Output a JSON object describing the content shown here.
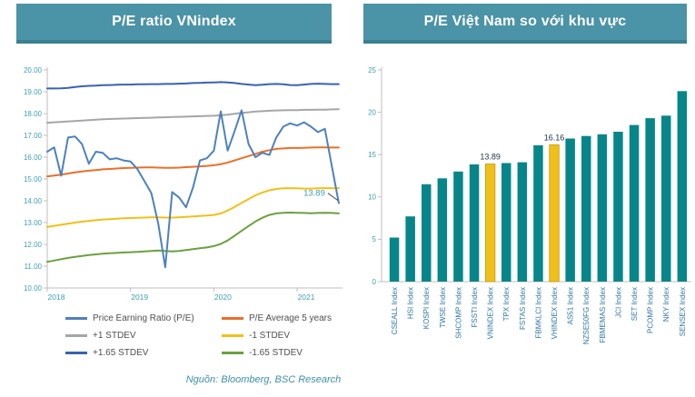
{
  "ui": {
    "left_header": "P/E ratio VNindex",
    "right_header": "P/E Việt Nam so với khu vực",
    "source": "Nguồn: Bloomberg, BSC Research"
  },
  "colors": {
    "banner_bg": "#4B93A6",
    "banner_border": "#3A7F92",
    "axis_line": "#BFBFBF",
    "tick_text": "#3E9FB2",
    "bar_teal": "#078689",
    "bar_gold": "#EFC01A",
    "bar_gold_stroke": "#C79B08",
    "bar_label_navy": "#1F3147",
    "bar_xlabel_blue": "#2E75A8",
    "annotation_leader": "#404040"
  },
  "chart_data": [
    {
      "type": "line",
      "title": "P/E ratio VNindex",
      "x_unit": "month",
      "x_start": "2018-01",
      "x_tick_labels": [
        "2018",
        "2019",
        "2020",
        "2021"
      ],
      "x_tick_positions": [
        0,
        12,
        24,
        36
      ],
      "ylim": [
        10,
        20
      ],
      "y_tick_step": 1,
      "y_tick_format": "2dp",
      "grid": false,
      "legend_position": "bottom",
      "annotation": {
        "text": "13.89",
        "series": "Price Earning Ratio (P/E)",
        "position": "last-point"
      },
      "series": [
        {
          "name": "Price Earning Ratio (P/E)",
          "color": "#4E81BD",
          "values": [
            16.25,
            16.45,
            15.15,
            16.9,
            16.95,
            16.6,
            15.7,
            16.25,
            16.2,
            15.9,
            15.95,
            15.85,
            15.8,
            15.45,
            14.9,
            14.35,
            12.95,
            10.95,
            14.4,
            14.15,
            13.7,
            14.6,
            15.85,
            15.95,
            16.3,
            18.1,
            16.3,
            17.2,
            18.15,
            16.6,
            16.0,
            16.2,
            16.1,
            16.9,
            17.4,
            17.55,
            17.45,
            17.6,
            17.4,
            17.15,
            17.3,
            15.6,
            13.89
          ]
        },
        {
          "name": "P/E Average 5 years",
          "color": "#E8702A",
          "values": [
            15.12,
            15.16,
            15.2,
            15.25,
            15.3,
            15.34,
            15.38,
            15.41,
            15.44,
            15.46,
            15.48,
            15.5,
            15.51,
            15.52,
            15.53,
            15.53,
            15.52,
            15.51,
            15.51,
            15.52,
            15.54,
            15.56,
            15.58,
            15.6,
            15.63,
            15.68,
            15.75,
            15.85,
            15.95,
            16.05,
            16.15,
            16.25,
            16.32,
            16.38,
            16.4,
            16.42,
            16.42,
            16.43,
            16.44,
            16.45,
            16.45,
            16.44,
            16.44
          ]
        },
        {
          "name": "+1 STDEV",
          "color": "#A6A6A6",
          "values": [
            17.58,
            17.6,
            17.62,
            17.64,
            17.66,
            17.68,
            17.7,
            17.72,
            17.74,
            17.75,
            17.76,
            17.77,
            17.78,
            17.79,
            17.8,
            17.81,
            17.82,
            17.83,
            17.84,
            17.85,
            17.86,
            17.87,
            17.88,
            17.89,
            17.9,
            17.92,
            17.95,
            17.99,
            18.03,
            18.06,
            18.09,
            18.11,
            18.13,
            18.14,
            18.15,
            18.16,
            18.16,
            18.17,
            18.17,
            18.18,
            18.18,
            18.19,
            18.2
          ]
        },
        {
          "name": "-1 STDEV",
          "color": "#F0C01A",
          "values": [
            12.8,
            12.85,
            12.9,
            12.95,
            13.0,
            13.04,
            13.08,
            13.11,
            13.14,
            13.16,
            13.18,
            13.2,
            13.21,
            13.22,
            13.23,
            13.24,
            13.24,
            13.23,
            13.23,
            13.24,
            13.26,
            13.28,
            13.3,
            13.32,
            13.35,
            13.42,
            13.55,
            13.72,
            13.9,
            14.08,
            14.25,
            14.38,
            14.48,
            14.54,
            14.57,
            14.58,
            14.57,
            14.56,
            14.56,
            14.57,
            14.58,
            14.58,
            14.58
          ]
        },
        {
          "name": "+1.65 STDEV",
          "color": "#3A62AE",
          "values": [
            19.15,
            19.15,
            19.16,
            19.18,
            19.22,
            19.25,
            19.27,
            19.28,
            19.3,
            19.31,
            19.32,
            19.33,
            19.33,
            19.34,
            19.34,
            19.35,
            19.35,
            19.36,
            19.36,
            19.37,
            19.38,
            19.4,
            19.41,
            19.42,
            19.43,
            19.44,
            19.43,
            19.4,
            19.36,
            19.33,
            19.3,
            19.32,
            19.35,
            19.36,
            19.34,
            19.31,
            19.3,
            19.33,
            19.36,
            19.37,
            19.36,
            19.35,
            19.35
          ]
        },
        {
          "name": "-1.65 STDEV",
          "color": "#6BA03F",
          "values": [
            11.2,
            11.26,
            11.32,
            11.38,
            11.43,
            11.47,
            11.51,
            11.54,
            11.57,
            11.59,
            11.61,
            11.63,
            11.64,
            11.66,
            11.68,
            11.7,
            11.72,
            11.7,
            11.68,
            11.7,
            11.74,
            11.78,
            11.82,
            11.86,
            11.92,
            12.02,
            12.18,
            12.4,
            12.62,
            12.84,
            13.05,
            13.22,
            13.35,
            13.42,
            13.45,
            13.46,
            13.45,
            13.44,
            13.43,
            13.44,
            13.45,
            13.44,
            13.42
          ]
        }
      ],
      "legend_order": [
        0,
        2,
        4,
        1,
        3,
        5
      ]
    },
    {
      "type": "bar",
      "title": "P/E Việt Nam so với khu vực",
      "categories": [
        "CSEALL Index",
        "HSI Index",
        "KOSPI Index",
        "TWSE Index",
        "SHCOMP Index",
        "FSSTI Index",
        "VNINDEX Index",
        "TPX Index",
        "FSTAS Index",
        "FBMKLCI Index",
        "VHINDEX Index",
        "AS51 Index",
        "NZSE50FG Index",
        "FBMEMAS Index",
        "JCI Index",
        "SET Index",
        "PCOMP Index",
        "NKY Index",
        "SENSEX Index"
      ],
      "values": [
        5.2,
        7.7,
        11.5,
        12.2,
        13.0,
        13.85,
        13.89,
        14.0,
        14.1,
        16.1,
        16.16,
        16.9,
        17.2,
        17.4,
        17.7,
        18.5,
        19.3,
        19.6,
        22.5
      ],
      "highlight_indices": [
        6,
        10
      ],
      "value_labels": {
        "6": "13.89",
        "10": "16.16"
      },
      "ylim": [
        0,
        25
      ],
      "y_ticks": [
        0,
        5,
        10,
        15,
        20,
        25
      ],
      "grid": false,
      "xlabel": "",
      "ylabel": ""
    }
  ]
}
